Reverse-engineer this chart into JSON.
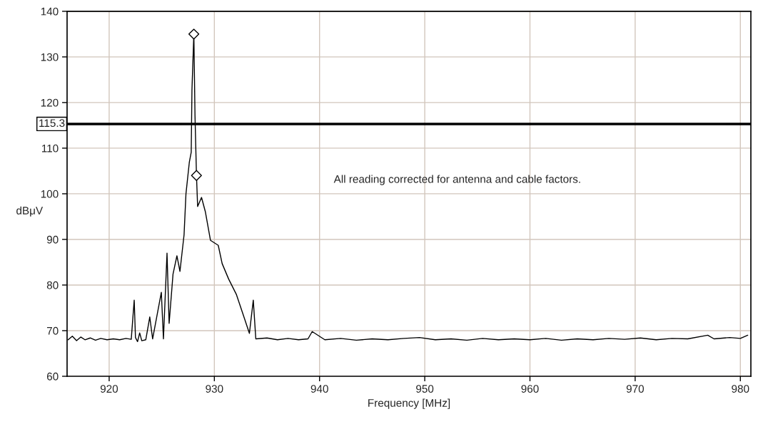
{
  "chart_data": {
    "type": "line",
    "xlabel": "Frequency [MHz]",
    "ylabel": "dBμV",
    "annotations": [
      "All reading corrected for antenna and cable factors."
    ],
    "xlim": [
      916,
      981
    ],
    "xticks": [
      920,
      930,
      940,
      950,
      960,
      970,
      980
    ],
    "ylim": [
      60,
      140
    ],
    "yticks": [
      60,
      70,
      80,
      90,
      100,
      110,
      120,
      130,
      140
    ],
    "grid": true,
    "legend": false,
    "ref_lines": [
      {
        "axis": "y",
        "value": 115.3,
        "label": "115.3",
        "color": "#000000",
        "line_style": "solid"
      }
    ],
    "series": [
      {
        "color": "#000000",
        "marker": "none",
        "x": [
          916.1,
          916.5,
          916.9,
          917.3,
          917.7,
          918.2,
          918.7,
          919.2,
          919.8,
          920.4,
          921.0,
          921.6,
          922.1,
          922.38,
          922.5,
          922.7,
          922.9,
          923.1,
          923.48,
          923.86,
          924.13,
          924.96,
          925.16,
          925.5,
          925.7,
          926.07,
          926.44,
          926.73,
          927.12,
          927.3,
          927.62,
          927.8,
          927.87,
          928.05,
          928.16,
          928.3,
          928.41,
          928.78,
          929.15,
          929.63,
          930.37,
          930.74,
          931.36,
          932.1,
          932.84,
          933.33,
          933.7,
          933.94,
          935.0,
          936.0,
          937.0,
          938.0,
          938.9,
          939.3,
          940.5,
          942.0,
          943.5,
          945.0,
          946.5,
          948.0,
          949.5,
          951.0,
          952.5,
          954.0,
          955.5,
          957.0,
          958.5,
          960.0,
          961.5,
          963.0,
          964.5,
          966.0,
          967.5,
          969.0,
          970.5,
          972.0,
          973.5,
          975.0,
          976.9,
          977.5,
          979.0,
          980.0,
          980.7
        ],
        "values": [
          68.0,
          68.8,
          67.8,
          68.6,
          68.0,
          68.4,
          67.9,
          68.3,
          68.0,
          68.2,
          68.0,
          68.3,
          68.1,
          76.7,
          68.5,
          67.6,
          69.5,
          67.8,
          68.0,
          73.0,
          68.2,
          78.4,
          68.2,
          87.0,
          71.6,
          82.4,
          86.4,
          83.0,
          91.0,
          100.0,
          106.9,
          109.1,
          122.8,
          135.0,
          117.1,
          104.0,
          97.2,
          99.2,
          96.0,
          89.8,
          88.7,
          84.7,
          81.3,
          77.9,
          72.8,
          69.4,
          76.7,
          68.2,
          68.4,
          68.0,
          68.3,
          68.0,
          68.2,
          69.8,
          68.0,
          68.3,
          67.9,
          68.2,
          68.0,
          68.3,
          68.5,
          68.0,
          68.2,
          67.9,
          68.3,
          68.0,
          68.2,
          68.0,
          68.3,
          67.9,
          68.2,
          68.0,
          68.3,
          68.1,
          68.4,
          68.0,
          68.3,
          68.2,
          69.0,
          68.2,
          68.5,
          68.3,
          69.0
        ]
      },
      {
        "type": "scatter",
        "color": "#000000",
        "marker": "diamond",
        "x": [
          928.05,
          928.3
        ],
        "values": [
          135.0,
          104.0
        ]
      }
    ]
  }
}
